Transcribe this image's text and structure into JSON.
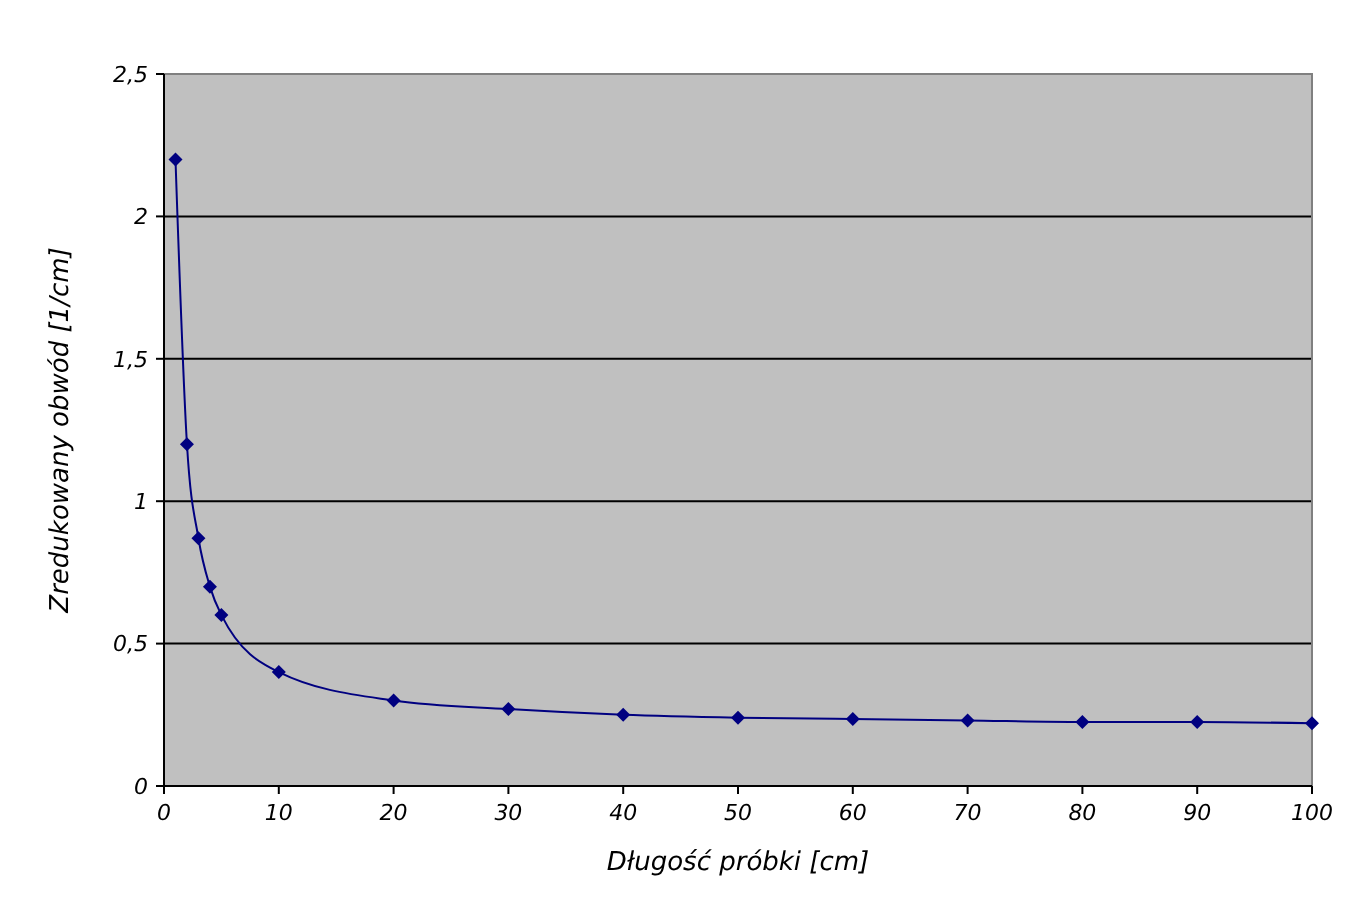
{
  "chart_data": {
    "type": "line",
    "xlabel": "Długość próbki [cm]",
    "ylabel": "Zredukowany obwód [1/cm]",
    "x": [
      1,
      2,
      3,
      4,
      5,
      10,
      20,
      30,
      40,
      50,
      60,
      70,
      80,
      90,
      100
    ],
    "series": [
      {
        "color": "#000080",
        "values": [
          2.2,
          1.2,
          0.87,
          0.7,
          0.6,
          0.4,
          0.3,
          0.27,
          0.25,
          0.24,
          0.235,
          0.23,
          0.225,
          0.225,
          0.22
        ]
      }
    ],
    "xlim": [
      0,
      100
    ],
    "xticks": [
      0,
      10,
      20,
      30,
      40,
      50,
      60,
      70,
      80,
      90,
      100
    ],
    "ylim": [
      0,
      2.5
    ],
    "yticks": [
      0,
      {
        "value": 0.5,
        "label": "0,5"
      },
      1,
      {
        "value": 1.5,
        "label": "1,5"
      },
      2,
      {
        "value": 2.5,
        "label": "2,5"
      }
    ],
    "grid": "y",
    "marker": "diamond",
    "line_style": "solid"
  }
}
